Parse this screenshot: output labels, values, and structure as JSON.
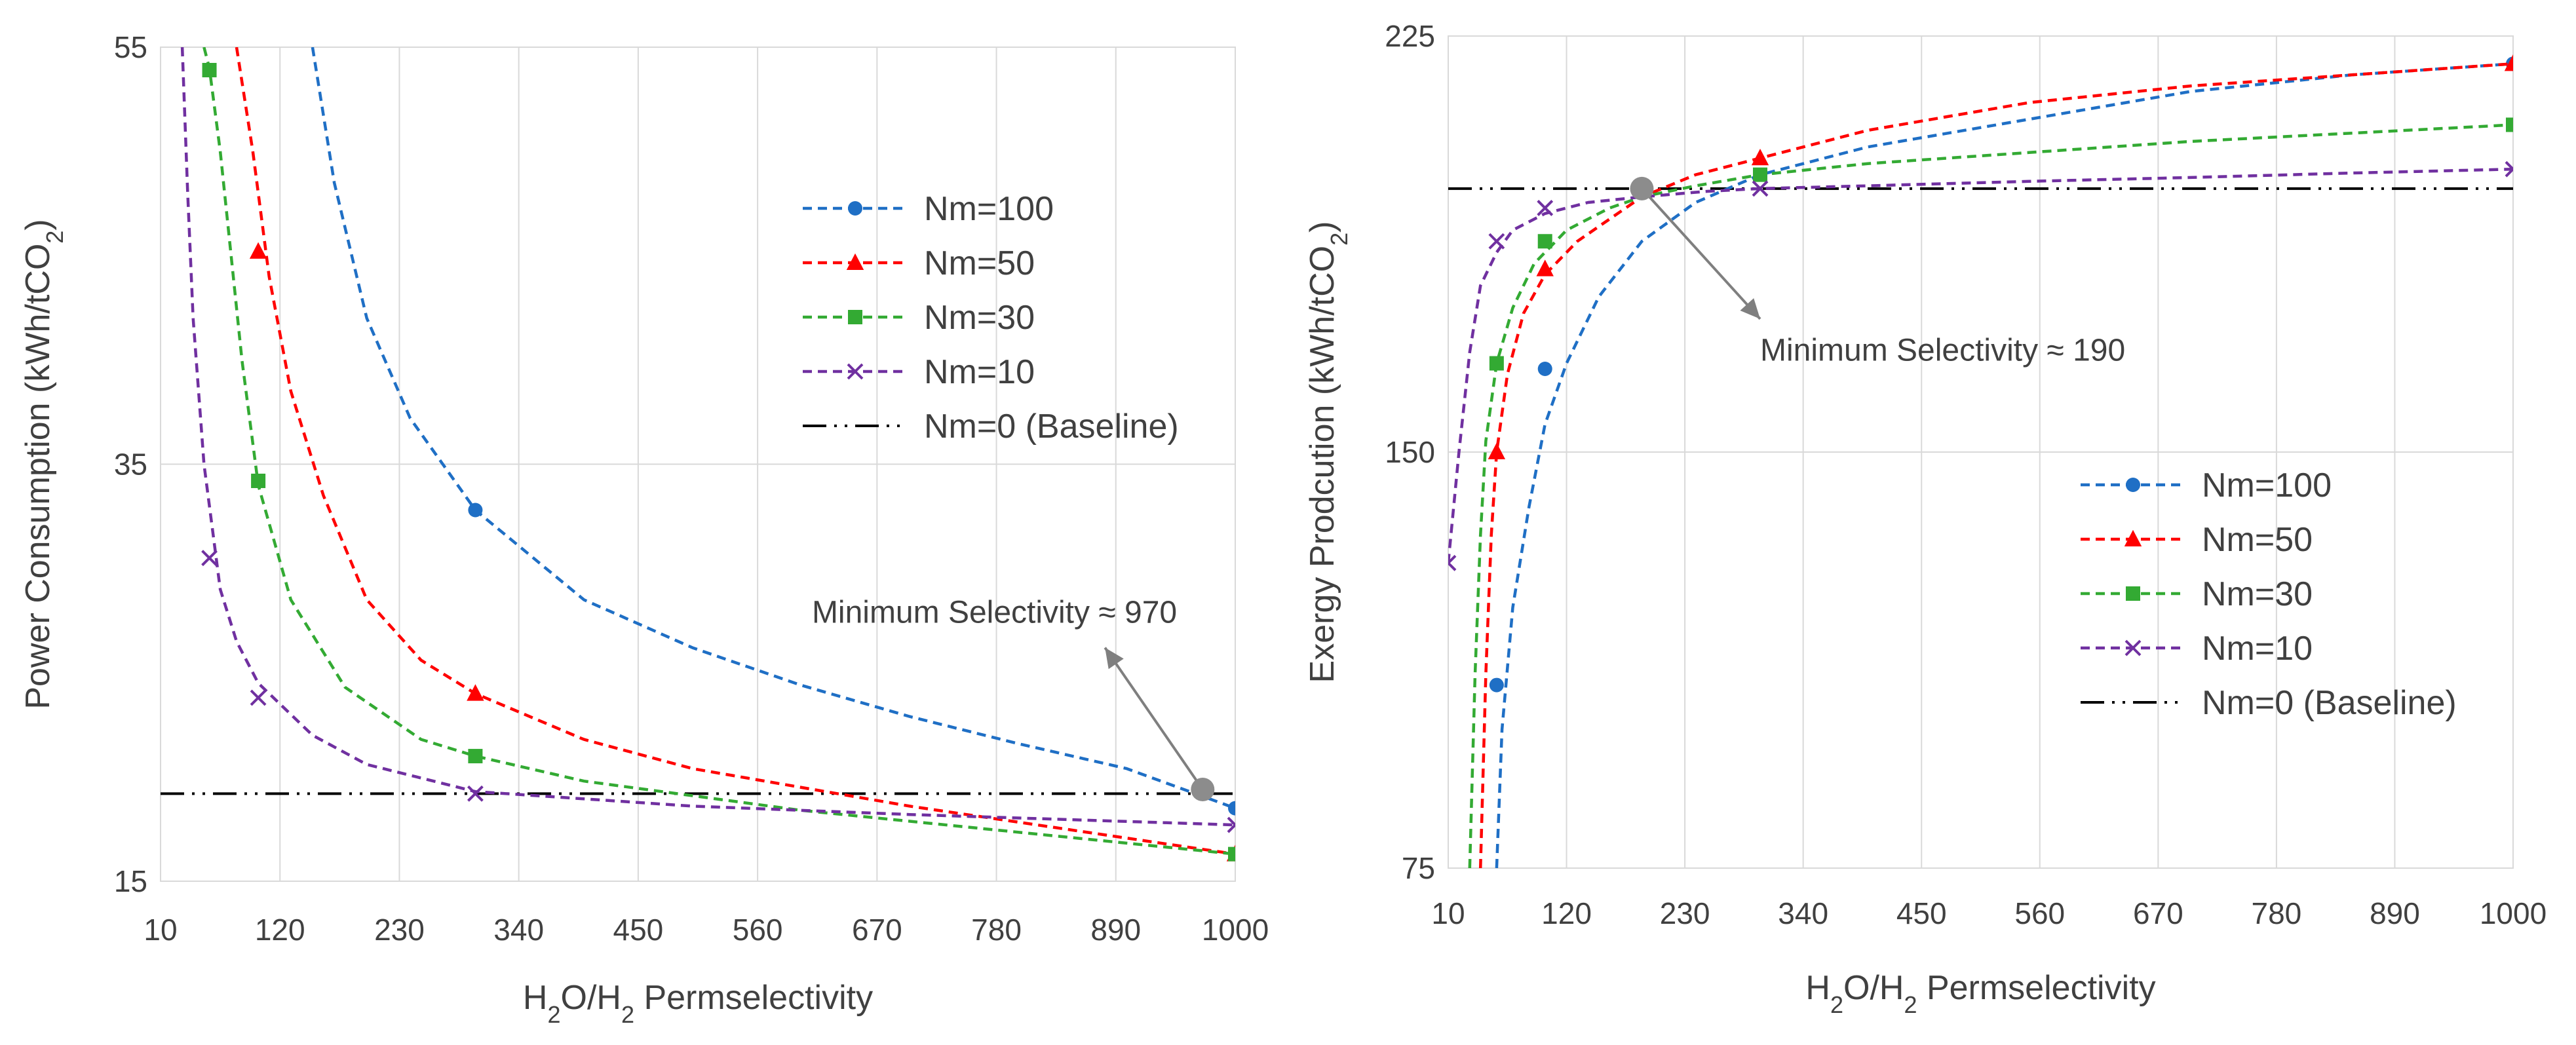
{
  "chart_data": [
    {
      "type": "line",
      "title": "",
      "xlabel": "H2O/H2 Permselectivity",
      "xlabel_parts": {
        "pre": "H",
        "sub1": "2",
        "mid": "O/H",
        "sub2": "2",
        "post": " Permselectivity"
      },
      "ylabel": "Power Consumption (kWh/tCO2)",
      "ylabel_parts": {
        "pre": "Power Consumption (kWh/tCO",
        "sub": "2",
        "post": ")"
      },
      "xlim": [
        10,
        1000
      ],
      "ylim": [
        15,
        55
      ],
      "x_ticks": [
        "10",
        "120",
        "230",
        "340",
        "450",
        "560",
        "670",
        "780",
        "890",
        "1000"
      ],
      "y_ticks": [
        "15",
        "35",
        "55"
      ],
      "grid": "vertical",
      "legend_position": "top-right",
      "series": [
        {
          "name": "Nm=100",
          "color": "#1F6FC5",
          "marker": "circle",
          "x": [
            150,
            170,
            200,
            240,
            300,
            400,
            500,
            600,
            700,
            800,
            900,
            1000
          ],
          "y": [
            55,
            48.5,
            42,
            37.2,
            32.8,
            28.5,
            26.2,
            24.4,
            22.9,
            21.6,
            20.4,
            18.5
          ],
          "markers_x": [
            300,
            1000
          ],
          "markers_y": [
            32.8,
            18.5
          ]
        },
        {
          "name": "Nm=50",
          "color": "#FF0000",
          "marker": "triangle",
          "x": [
            80,
            95,
            110,
            130,
            160,
            200,
            250,
            300,
            400,
            500,
            700,
            1000
          ],
          "y": [
            55,
            50,
            44,
            38.5,
            33.5,
            28.5,
            25.6,
            24,
            21.8,
            20.4,
            18.6,
            16.3
          ],
          "markers_x": [
            100,
            300,
            1000
          ],
          "markers_y": [
            45.2,
            24,
            16.3
          ]
        },
        {
          "name": "Nm=30",
          "color": "#33AA33",
          "marker": "square",
          "x": [
            50,
            55,
            65,
            75,
            85,
            100,
            130,
            180,
            250,
            300,
            400,
            600,
            1000
          ],
          "y": [
            55,
            54,
            50,
            45,
            40,
            34,
            28.5,
            24.3,
            21.8,
            21,
            19.8,
            18.4,
            16.3
          ],
          "markers_x": [
            55,
            100,
            300,
            1000
          ],
          "markers_y": [
            53.9,
            34.2,
            21,
            16.3
          ]
        },
        {
          "name": "Nm=10",
          "color": "#7030A0",
          "marker": "x",
          "x": [
            30,
            35,
            40,
            50,
            65,
            80,
            100,
            150,
            200,
            300,
            500,
            700,
            1000
          ],
          "y": [
            55,
            48,
            42,
            35,
            29,
            26.5,
            24.5,
            22,
            20.6,
            19.3,
            18.6,
            18.2,
            17.7
          ],
          "markers_x": [
            55,
            100,
            300,
            1000
          ],
          "markers_y": [
            30.5,
            23.8,
            19.2,
            17.7
          ]
        }
      ],
      "baseline": {
        "name": "Nm=0 (Baseline)",
        "color": "#000000",
        "y": 19.2
      },
      "annotation": {
        "text": "Minimum Selectivity ≈ 970",
        "point_x": 970,
        "point_y": 19.4,
        "text_anchor_x": 610,
        "text_anchor_y": 27.4,
        "arrow_to_x": 880,
        "arrow_to_y": 26.2
      }
    },
    {
      "type": "line",
      "title": "",
      "xlabel": "H2O/H2 Permselectivity",
      "xlabel_parts": {
        "pre": "H",
        "sub1": "2",
        "mid": "O/H",
        "sub2": "2",
        "post": " Permselectivity"
      },
      "ylabel": "Exergy Prodcution (kWh/tCO2)",
      "ylabel_parts": {
        "pre": "Exergy Prodcution (kWh/tCO",
        "sub": "2",
        "post": ")"
      },
      "xlim": [
        10,
        1000
      ],
      "ylim": [
        75,
        225
      ],
      "x_ticks": [
        "10",
        "120",
        "230",
        "340",
        "450",
        "560",
        "670",
        "780",
        "890",
        "1000"
      ],
      "y_ticks": [
        "75",
        "150",
        "225"
      ],
      "grid": "both",
      "legend_position": "bottom-right",
      "series": [
        {
          "name": "Nm=100",
          "color": "#1F6FC5",
          "marker": "circle",
          "x": [
            55,
            60,
            70,
            85,
            100,
            120,
            150,
            190,
            240,
            300,
            400,
            550,
            700,
            850,
            1000
          ],
          "y": [
            75,
            100,
            122,
            140,
            155,
            166,
            178,
            188,
            195,
            200,
            205,
            210,
            215,
            218,
            220
          ],
          "markers_x": [
            55,
            100,
            1000
          ],
          "markers_y": [
            108,
            165,
            220
          ]
        },
        {
          "name": "Nm=50",
          "color": "#FF0000",
          "marker": "triangle",
          "x": [
            40,
            45,
            50,
            55,
            65,
            80,
            100,
            130,
            160,
            190,
            240,
            300,
            400,
            550,
            700,
            850,
            1000
          ],
          "y": [
            75,
            110,
            135,
            150,
            164,
            175,
            182,
            188,
            192,
            196,
            200,
            203,
            208,
            213,
            216,
            218,
            220
          ],
          "markers_x": [
            55,
            100,
            300,
            1000
          ],
          "markers_y": [
            150,
            183,
            203,
            220
          ]
        },
        {
          "name": "Nm=30",
          "color": "#33AA33",
          "marker": "square",
          "x": [
            30,
            35,
            40,
            45,
            55,
            70,
            90,
            120,
            160,
            190,
            240,
            300,
            400,
            550,
            700,
            850,
            1000
          ],
          "y": [
            75,
            110,
            135,
            152,
            166,
            176,
            184,
            190,
            194,
            196,
            198,
            200,
            202,
            204,
            206,
            207.5,
            209
          ],
          "markers_x": [
            55,
            100,
            300,
            1000
          ],
          "markers_y": [
            166,
            188,
            200,
            209
          ]
        },
        {
          "name": "Nm=10",
          "color": "#7030A0",
          "marker": "x",
          "x": [
            10,
            20,
            30,
            40,
            55,
            70,
            100,
            140,
            190,
            250,
            300,
            400,
            550,
            700,
            850,
            1000
          ],
          "y": [
            130,
            150,
            168,
            180,
            186,
            190,
            193,
            195,
            196,
            197,
            197.5,
            198,
            198.8,
            199.5,
            200.3,
            201
          ],
          "markers_x": [
            10,
            55,
            100,
            300,
            1000
          ],
          "markers_y": [
            130,
            188,
            194,
            197.5,
            201
          ]
        }
      ],
      "baseline": {
        "name": "Nm=0 (Baseline)",
        "color": "#000000",
        "y": 197.5
      },
      "annotation": {
        "text": "Minimum Selectivity ≈ 190",
        "point_x": 190,
        "point_y": 197.5,
        "text_anchor_x": 300,
        "text_anchor_y": 166.5,
        "arrow_to_x": 300,
        "arrow_to_y": 174
      }
    }
  ]
}
